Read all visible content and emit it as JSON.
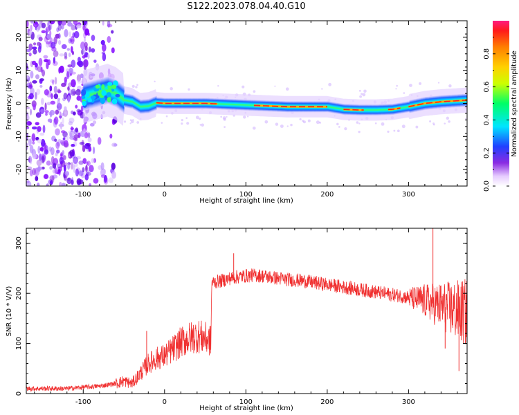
{
  "title": "S122.2023.078.04.40.G10",
  "chart_data": [
    {
      "type": "heatmap",
      "xlabel": "Height of straight line (km)",
      "ylabel": "Frequency (Hz)",
      "xlim": [
        -170,
        372
      ],
      "ylim": [
        -25,
        25
      ],
      "xticks": [
        -100,
        0,
        100,
        200,
        300
      ],
      "yticks": [
        -20,
        -10,
        0,
        10,
        20
      ],
      "colorbar": {
        "label": "Normalized spectral amplitude",
        "range": [
          0,
          1
        ],
        "ticks": [
          "0.0",
          "0.2",
          "0.4",
          "0.6",
          "0.8"
        ]
      },
      "ridge": {
        "x": [
          -100,
          -85,
          -70,
          -60,
          -50,
          -40,
          -30,
          -20,
          -10,
          0,
          50,
          100,
          150,
          200,
          220,
          240,
          260,
          280,
          300,
          320,
          340,
          360,
          372
        ],
        "y": [
          2.0,
          3.0,
          4.0,
          3.0,
          1.0,
          0.5,
          -1.0,
          -0.8,
          0.2,
          0.0,
          0.0,
          -0.5,
          -1.0,
          -1.0,
          -1.8,
          -2.0,
          -2.0,
          -1.8,
          -1.0,
          0.0,
          0.5,
          0.8,
          1.0
        ]
      },
      "noise_region_x": [
        -170,
        -60
      ]
    },
    {
      "type": "line",
      "xlabel": "Height of straight line (km)",
      "ylabel": "SNR (10 * V/V)",
      "xlim": [
        -170,
        372
      ],
      "ylim": [
        0,
        330
      ],
      "xticks": [
        -100,
        0,
        100,
        200,
        300
      ],
      "yticks": [
        0,
        100,
        200,
        300
      ],
      "color": "#f03030",
      "series": [
        {
          "x": [
            -170,
            -120,
            -80,
            -60,
            -50,
            -40,
            -30,
            -20,
            -10,
            0,
            10,
            20,
            30,
            40,
            50,
            57,
            58,
            60,
            70,
            80,
            90,
            100,
            110,
            120,
            130,
            150,
            170,
            190,
            210,
            230,
            250,
            270,
            290,
            310,
            320,
            330,
            340,
            350,
            360,
            372
          ],
          "values": [
            10,
            10,
            15,
            20,
            25,
            20,
            40,
            60,
            70,
            75,
            88,
            102,
            110,
            115,
            110,
            105,
            222,
            222,
            225,
            230,
            233,
            235,
            236,
            235,
            232,
            228,
            225,
            220,
            215,
            210,
            205,
            200,
            195,
            188,
            185,
            180,
            175,
            170,
            165,
            160
          ]
        }
      ],
      "spikes": [
        {
          "x": -22,
          "value": 125
        },
        {
          "x": 85,
          "value": 280
        },
        {
          "x": 330,
          "value": 330
        },
        {
          "x": 345,
          "value": 90
        },
        {
          "x": 362,
          "value": 45
        }
      ]
    }
  ]
}
